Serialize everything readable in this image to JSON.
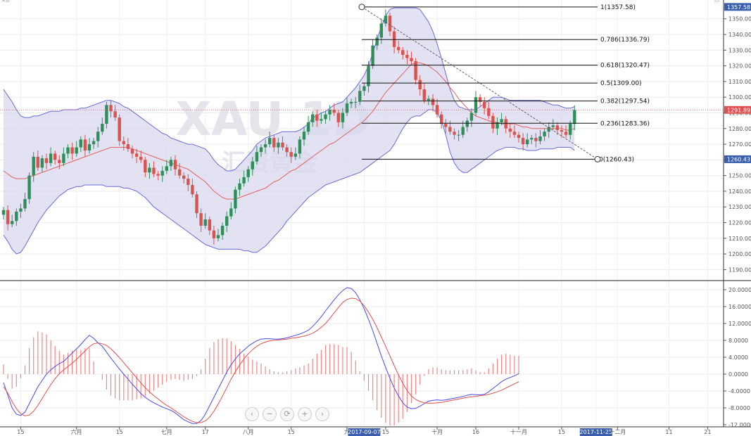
{
  "symbol": "XAU 1D",
  "watermark_sub": "汇资黄金",
  "topbar": {
    "left_text": "ЖЫ",
    "right_text": "ЗЗ"
  },
  "navbar": {
    "buttons": [
      "‹",
      "−",
      "⟳",
      "+",
      "›"
    ]
  },
  "colors": {
    "up": "#2f8f5b",
    "down": "#d9534f",
    "macd_line": "#4a4aee",
    "signal_line": "#e05050",
    "hist": "#ee8888",
    "band_fill": "#d8d8ef",
    "band_line": "#6a6ad8",
    "ma_line": "#e06060"
  },
  "chart_data": [
    {
      "type": "candlestick",
      "panel": "price",
      "ylim": [
        1183,
        1362
      ],
      "ytick_values": [
        1190,
        1200,
        1210,
        1220,
        1230,
        1240,
        1250,
        1260,
        1270,
        1280,
        1290,
        1300,
        1310,
        1320,
        1330,
        1340,
        1350
      ],
      "ytick_labels": [
        "1190.00",
        "1200.00",
        "1210.00",
        "1220.00",
        "1230.00",
        "1240.00",
        "1250.00",
        "1260.00",
        "1270.00",
        "1280.00",
        "1290.00",
        "1300.00",
        "1310.00",
        "1320.00",
        "1330.00",
        "1340.00",
        "1350.00"
      ],
      "x_labels": [
        "15",
        "六月",
        "15",
        "七月",
        "17",
        "八月",
        "15",
        "九",
        "2017-09-07",
        "15",
        "十月",
        "16",
        "十一月",
        "15",
        "2017-11-25",
        "十二月",
        "11",
        "21"
      ],
      "current_price_label": "1291.89",
      "high_label": "1357.58",
      "low_label": "1260.43",
      "fib_labels": [
        "1(1357.58)",
        "0.786(1336.79)",
        "0.618(1320.47)",
        "0.5(1309.00)",
        "0.382(1297.54)",
        "0.236(1283.36)",
        "0(1260.43)"
      ],
      "fib_levels": [
        1357.58,
        1336.79,
        1320.47,
        1309.0,
        1297.54,
        1283.36,
        1260.43
      ],
      "closes": [
        1228,
        1219,
        1221,
        1227,
        1229,
        1235,
        1250,
        1262,
        1255,
        1261,
        1258,
        1264,
        1260,
        1258,
        1264,
        1268,
        1264,
        1268,
        1273,
        1266,
        1270,
        1272,
        1278,
        1283,
        1295,
        1291,
        1287,
        1272,
        1270,
        1267,
        1264,
        1262,
        1260,
        1252,
        1255,
        1251,
        1250,
        1253,
        1256,
        1260,
        1254,
        1250,
        1248,
        1244,
        1238,
        1226,
        1218,
        1222,
        1215,
        1210,
        1212,
        1218,
        1224,
        1229,
        1241,
        1245,
        1249,
        1254,
        1259,
        1265,
        1268,
        1270,
        1274,
        1268,
        1271,
        1268,
        1265,
        1262,
        1264,
        1273,
        1278,
        1284,
        1289,
        1285,
        1286,
        1289,
        1292,
        1290,
        1284,
        1290,
        1296,
        1297,
        1297,
        1304,
        1307,
        1320,
        1333,
        1338,
        1347,
        1352,
        1342,
        1332,
        1330,
        1327,
        1325,
        1323,
        1311,
        1305,
        1298,
        1299,
        1295,
        1289,
        1283,
        1281,
        1278,
        1276,
        1276,
        1281,
        1285,
        1290,
        1300,
        1297,
        1293,
        1288,
        1280,
        1284,
        1286,
        1280,
        1278,
        1276,
        1274,
        1270,
        1273,
        1274,
        1272,
        1275,
        1278,
        1281,
        1282,
        1279,
        1278,
        1276,
        1283,
        1291.89
      ],
      "bb_upper": [
        1305,
        1301,
        1297,
        1292,
        1288,
        1287,
        1287,
        1288,
        1288,
        1289,
        1290,
        1291,
        1291,
        1291,
        1292,
        1292,
        1292,
        1292,
        1293,
        1293,
        1294,
        1295,
        1296,
        1297,
        1298,
        1298,
        1297,
        1296,
        1294,
        1293,
        1291,
        1289,
        1287,
        1285,
        1283,
        1281,
        1279,
        1277,
        1276,
        1274,
        1273,
        1272,
        1271,
        1270,
        1270,
        1269,
        1268,
        1267,
        1264,
        1260,
        1257,
        1255,
        1253,
        1253,
        1254,
        1257,
        1260,
        1263,
        1266,
        1270,
        1272,
        1274,
        1275,
        1276,
        1277,
        1278,
        1278,
        1278,
        1278,
        1279,
        1281,
        1283,
        1287,
        1288,
        1290,
        1291,
        1293,
        1295,
        1296,
        1297,
        1300,
        1303,
        1306,
        1310,
        1314,
        1320,
        1328,
        1337,
        1345,
        1352,
        1356,
        1357,
        1357,
        1357,
        1357,
        1357,
        1357,
        1356,
        1352,
        1348,
        1342,
        1334,
        1325,
        1315,
        1305,
        1298,
        1294,
        1293,
        1292,
        1292,
        1292,
        1294,
        1296,
        1298,
        1300,
        1300,
        1300,
        1299,
        1298,
        1298,
        1298,
        1298,
        1298,
        1298,
        1298,
        1298,
        1297,
        1296,
        1295,
        1295,
        1294,
        1293,
        1293,
        1294
      ],
      "bb_mid": [
        1253,
        1251,
        1249,
        1248,
        1248,
        1248,
        1249,
        1250,
        1251,
        1252,
        1253,
        1254,
        1255,
        1256,
        1257,
        1258,
        1259,
        1260,
        1261,
        1262,
        1263,
        1264,
        1265,
        1266,
        1267,
        1268,
        1268,
        1268,
        1268,
        1268,
        1267,
        1266,
        1265,
        1264,
        1263,
        1262,
        1261,
        1260,
        1259,
        1258,
        1257,
        1256,
        1255,
        1254,
        1252,
        1250,
        1248,
        1246,
        1243,
        1240,
        1238,
        1236,
        1235,
        1235,
        1235,
        1236,
        1237,
        1238,
        1239,
        1240,
        1241,
        1242,
        1244,
        1246,
        1247,
        1249,
        1251,
        1253,
        1254,
        1256,
        1258,
        1260,
        1262,
        1264,
        1266,
        1268,
        1270,
        1271,
        1273,
        1275,
        1277,
        1279,
        1281,
        1283,
        1285,
        1288,
        1291,
        1295,
        1299,
        1303,
        1306,
        1309,
        1312,
        1315,
        1318,
        1321,
        1322,
        1322,
        1321,
        1320,
        1318,
        1316,
        1313,
        1310,
        1306,
        1303,
        1299,
        1296,
        1293,
        1290,
        1288,
        1287,
        1286,
        1285,
        1284,
        1284,
        1283,
        1283,
        1283,
        1283,
        1282,
        1281,
        1281,
        1280,
        1280,
        1280,
        1280,
        1280,
        1280,
        1280,
        1280,
        1279,
        1279,
        1280
      ],
      "bb_lower": [
        1212,
        1208,
        1203,
        1200,
        1201,
        1205,
        1210,
        1215,
        1220,
        1224,
        1228,
        1231,
        1234,
        1237,
        1239,
        1241,
        1242,
        1243,
        1243,
        1244,
        1244,
        1244,
        1244,
        1244,
        1243,
        1243,
        1243,
        1243,
        1242,
        1242,
        1241,
        1240,
        1238,
        1236,
        1233,
        1230,
        1228,
        1226,
        1224,
        1222,
        1220,
        1218,
        1216,
        1214,
        1212,
        1210,
        1208,
        1206,
        1205,
        1204,
        1203,
        1203,
        1203,
        1203,
        1203,
        1203,
        1202,
        1202,
        1201,
        1201,
        1203,
        1205,
        1208,
        1211,
        1214,
        1217,
        1221,
        1224,
        1227,
        1230,
        1233,
        1236,
        1238,
        1240,
        1242,
        1244,
        1245,
        1246,
        1247,
        1248,
        1249,
        1250,
        1251,
        1252,
        1254,
        1256,
        1258,
        1260,
        1262,
        1264,
        1266,
        1270,
        1275,
        1280,
        1284,
        1287,
        1288,
        1288,
        1290,
        1292,
        1292,
        1290,
        1285,
        1276,
        1265,
        1258,
        1254,
        1252,
        1252,
        1254,
        1256,
        1258,
        1260,
        1262,
        1264,
        1266,
        1267,
        1268,
        1268,
        1268,
        1267,
        1267,
        1266,
        1266,
        1266,
        1267,
        1267,
        1267,
        1267,
        1268,
        1268,
        1268,
        1268,
        1266
      ]
    },
    {
      "type": "macd",
      "panel": "indicator",
      "ylim": [
        -12.5,
        22
      ],
      "ytick_values": [
        -12,
        -8,
        -4,
        0,
        4,
        8,
        12,
        16,
        20
      ],
      "ytick_labels": [
        "-12.0000",
        "-8.0000",
        "-4.0000",
        "0.0000",
        "4.0000",
        "8.0000",
        "12.0000",
        "16.0000",
        "20.0000"
      ],
      "macd": [
        -2,
        -5,
        -8,
        -9.5,
        -9.8,
        -9,
        -7,
        -5,
        -3,
        -1.5,
        0,
        1,
        1.8,
        2.5,
        3,
        4,
        5,
        6,
        7,
        8.2,
        9.2,
        8.5,
        7.4,
        6.6,
        5.2,
        3.8,
        2.5,
        1.2,
        0,
        -1.2,
        -2.4,
        -3.5,
        -4.6,
        -5.5,
        -6.2,
        -6.8,
        -7.3,
        -7.8,
        -8.2,
        -8.6,
        -9.2,
        -10,
        -10.8,
        -11.3,
        -11.7,
        -11.7,
        -11,
        -9.5,
        -7.5,
        -5.5,
        -3.5,
        -1.5,
        0.5,
        2.2,
        3.6,
        4.8,
        5.7,
        6.6,
        7.3,
        7.9,
        8.3,
        8.4,
        8.4,
        8.3,
        8.3,
        8.4,
        8.6,
        8.9,
        9.2,
        9.5,
        9.9,
        10.4,
        11.3,
        12.4,
        13.6,
        15,
        16.3,
        17.6,
        18.8,
        19.8,
        20.5,
        20.3,
        19.3,
        17.6,
        15.5,
        13,
        10.3,
        7.3,
        4.3,
        1.6,
        -1,
        -3.3,
        -5.2,
        -6.8,
        -7.8,
        -8.2,
        -8.1,
        -7.6,
        -7,
        -6.4,
        -6.2,
        -6.1,
        -6.2,
        -6.1,
        -5.9,
        -5.7,
        -5.5,
        -5.3,
        -5,
        -4.8,
        -4.9,
        -4.9,
        -4.8,
        -4.2,
        -3.4,
        -2.6,
        -1.8,
        -1.2,
        -0.8,
        -0.4,
        0.1
      ],
      "signal": [
        -3,
        -4.5,
        -6.5,
        -8.2,
        -9.4,
        -9.9,
        -9.7,
        -8.8,
        -7.4,
        -5.8,
        -4.1,
        -2.5,
        -1.1,
        0.1,
        1,
        1.8,
        2.6,
        3.5,
        4.5,
        5.5,
        6.5,
        7.2,
        7.4,
        7.2,
        6.8,
        6,
        5,
        3.9,
        2.7,
        1.5,
        0.3,
        -0.9,
        -2.1,
        -3.2,
        -4.2,
        -5.1,
        -5.9,
        -6.7,
        -7.4,
        -8,
        -8.7,
        -9.4,
        -10.1,
        -10.7,
        -11.2,
        -11.5,
        -11.5,
        -11.1,
        -10.2,
        -8.8,
        -7.1,
        -5.2,
        -3.2,
        -1.2,
        0.6,
        2.2,
        3.6,
        4.8,
        5.8,
        6.6,
        7.2,
        7.6,
        7.9,
        8,
        8.1,
        8.2,
        8.3,
        8.5,
        8.6,
        8.8,
        9,
        9.3,
        9.7,
        10.3,
        11.1,
        12,
        13.2,
        14.5,
        15.8,
        17,
        17.7,
        18,
        17.9,
        17.3,
        16.2,
        14.7,
        13,
        11,
        8.8,
        6.6,
        4.3,
        2,
        -0.2,
        -2.2,
        -3.9,
        -5.2,
        -6,
        -6.5,
        -6.8,
        -6.9,
        -6.9,
        -6.8,
        -6.7,
        -6.5,
        -6.3,
        -6.1,
        -5.9,
        -5.7,
        -5.5,
        -5.4,
        -5.3,
        -5.1,
        -5,
        -4.8,
        -4.5,
        -4.2,
        -3.8,
        -3.3,
        -2.8,
        -2.3,
        -1.8
      ]
    }
  ]
}
